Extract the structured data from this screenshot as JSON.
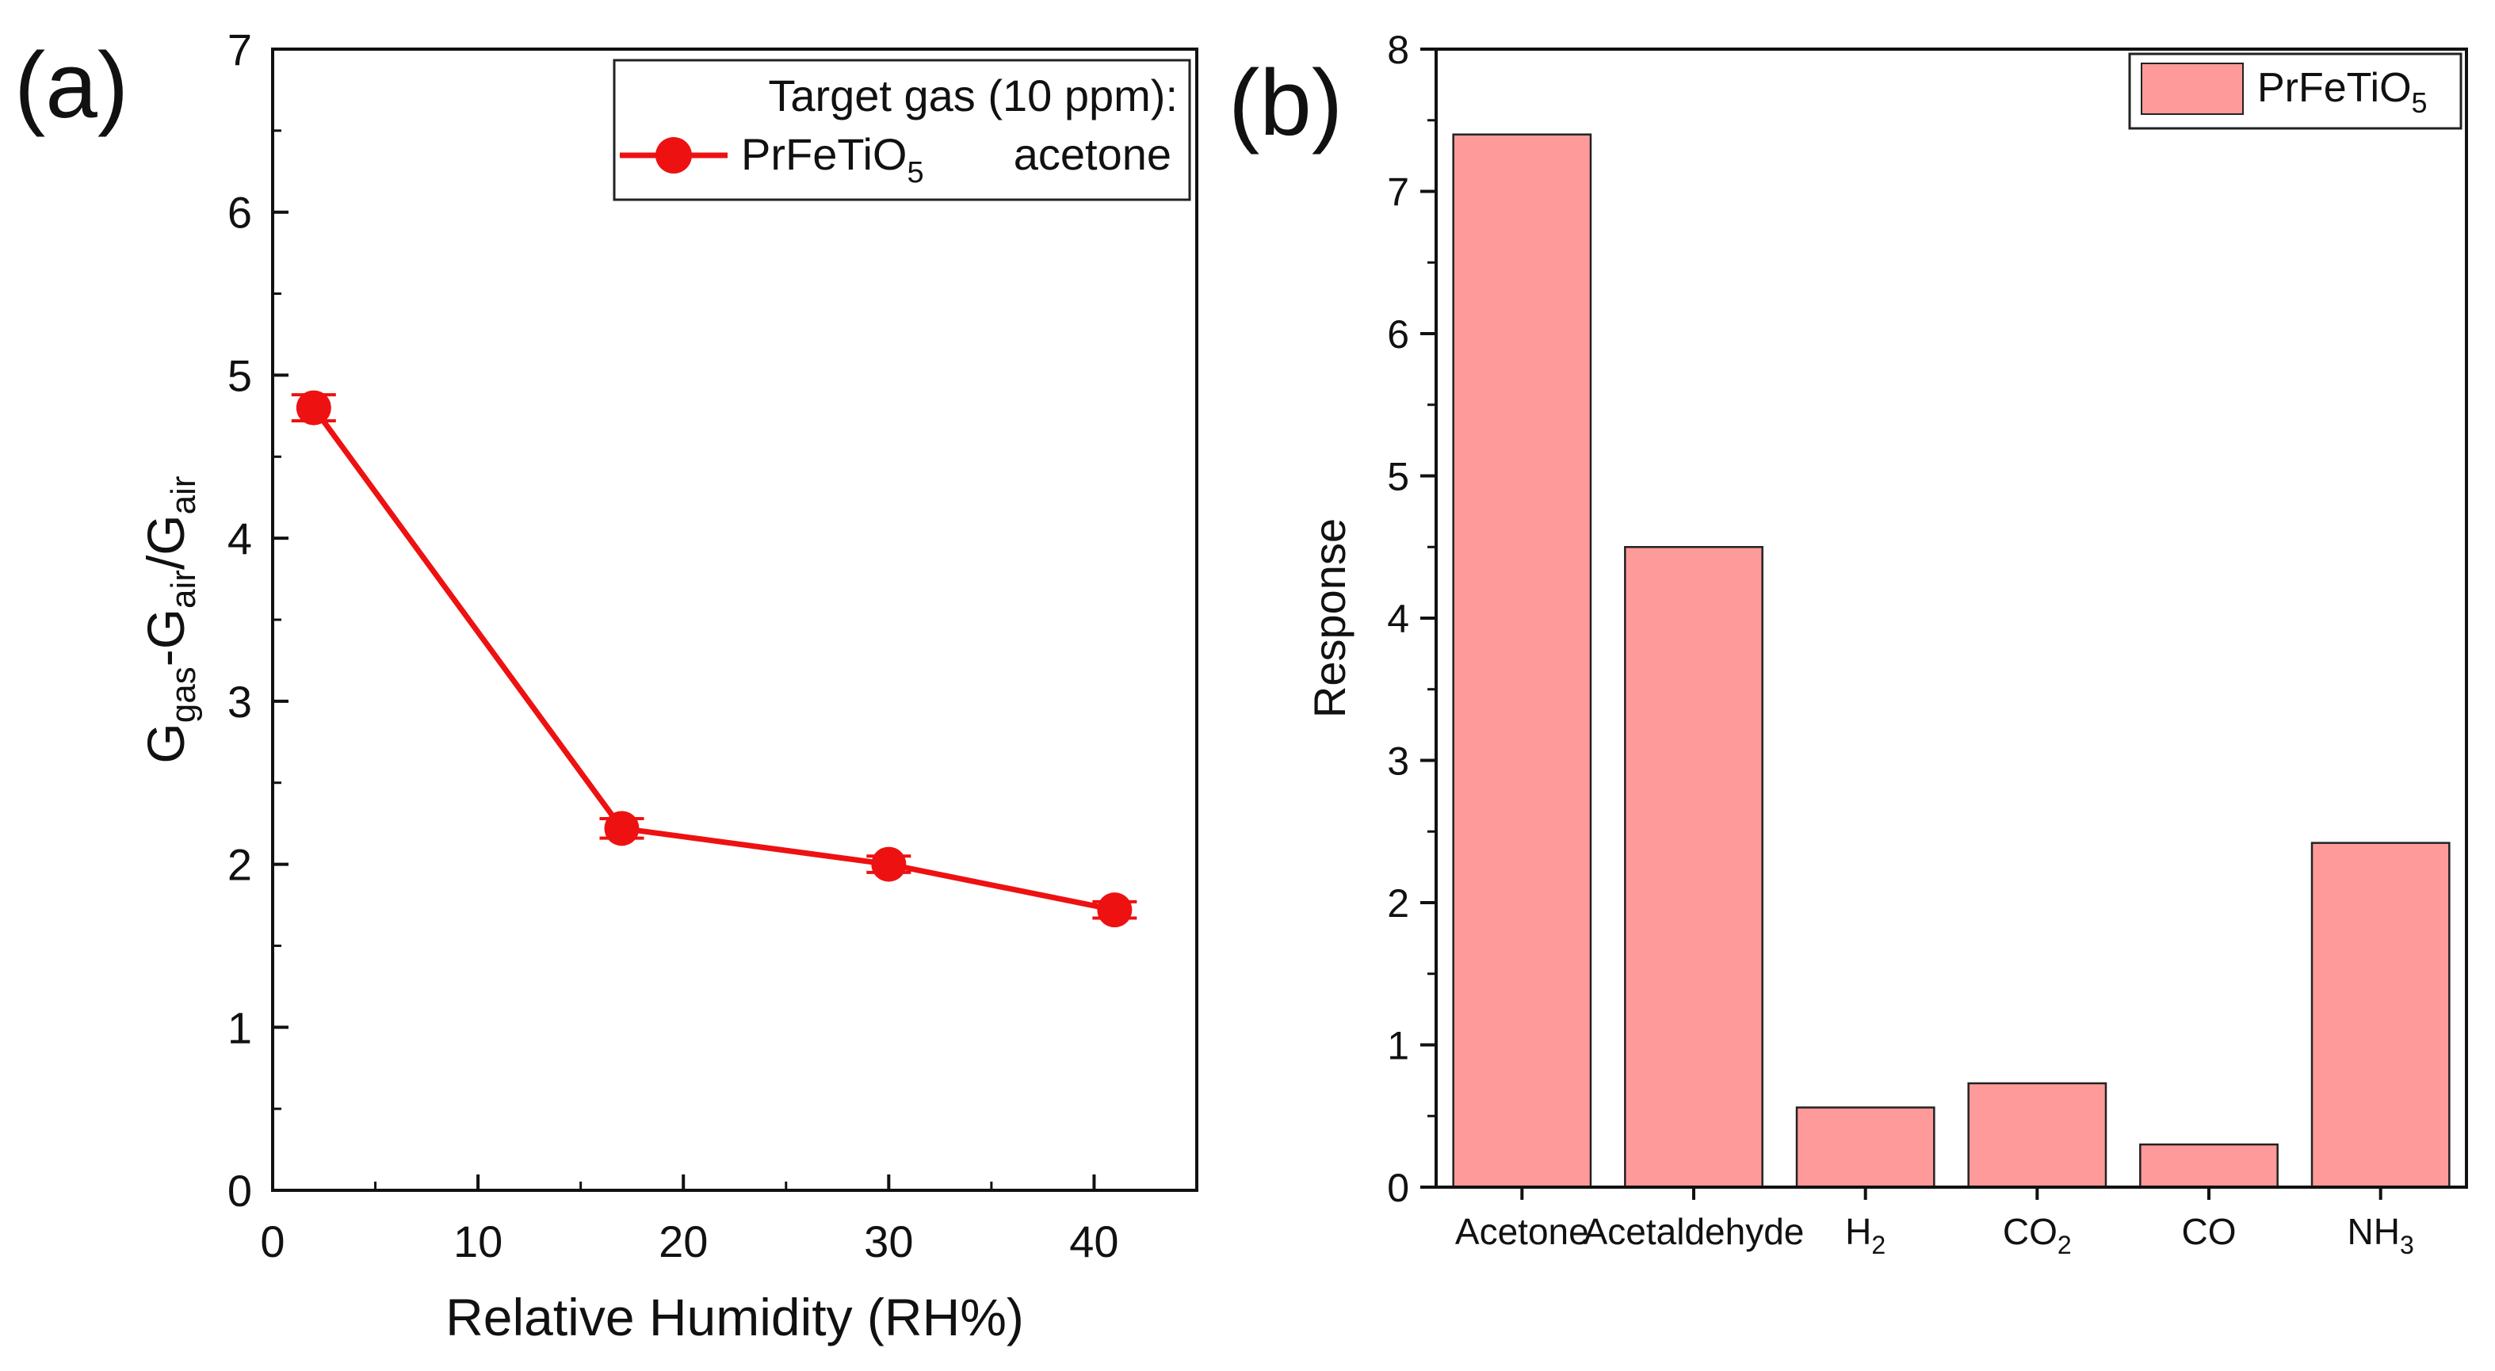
{
  "colors": {
    "line_a": "#ee1111",
    "bar_fill": "#ff9a9a",
    "bar_stroke": "#222222",
    "axis": "#111111"
  },
  "chart_data": [
    {
      "type": "line",
      "panel_label": "(a)",
      "xlabel": "Relative Humidity (RH%)",
      "ylabel": {
        "parts": [
          "G",
          "gas",
          "-G",
          "air",
          "/G",
          "air"
        ]
      },
      "xlim": [
        0,
        45
      ],
      "ylim": [
        0,
        7
      ],
      "xticks": [
        0,
        10,
        20,
        30,
        40
      ],
      "yticks": [
        0,
        1,
        2,
        3,
        4,
        5,
        6,
        7
      ],
      "legend": {
        "title": "Target gas (10 ppm):",
        "series_main": "PrFeTiO",
        "series_sub": "5",
        "gas": "acetone",
        "placement": "top-right"
      },
      "series": [
        {
          "name": "PrFeTiO5 acetone",
          "x": [
            2,
            17,
            30,
            41
          ],
          "y": [
            4.8,
            2.22,
            2.0,
            1.72
          ],
          "yerr": [
            0.08,
            0.06,
            0.05,
            0.05
          ]
        }
      ]
    },
    {
      "type": "bar",
      "panel_label": "(b)",
      "ylabel": "Response",
      "ylim": [
        0,
        8
      ],
      "yticks": [
        0,
        1,
        2,
        3,
        4,
        5,
        6,
        7,
        8
      ],
      "categories": [
        {
          "main": "Acetone",
          "sub": "",
          "tail": ""
        },
        {
          "main": "Acetaldehyde",
          "sub": "",
          "tail": ""
        },
        {
          "main": "H",
          "sub": "2",
          "tail": ""
        },
        {
          "main": "CO",
          "sub": "2",
          "tail": ""
        },
        {
          "main": "CO",
          "sub": "",
          "tail": ""
        },
        {
          "main": "NH",
          "sub": "3",
          "tail": ""
        }
      ],
      "values": [
        7.4,
        4.5,
        0.56,
        0.73,
        0.3,
        2.42
      ],
      "legend": {
        "series_main": "PrFeTiO",
        "series_sub": "5",
        "placement": "top-right"
      }
    }
  ]
}
